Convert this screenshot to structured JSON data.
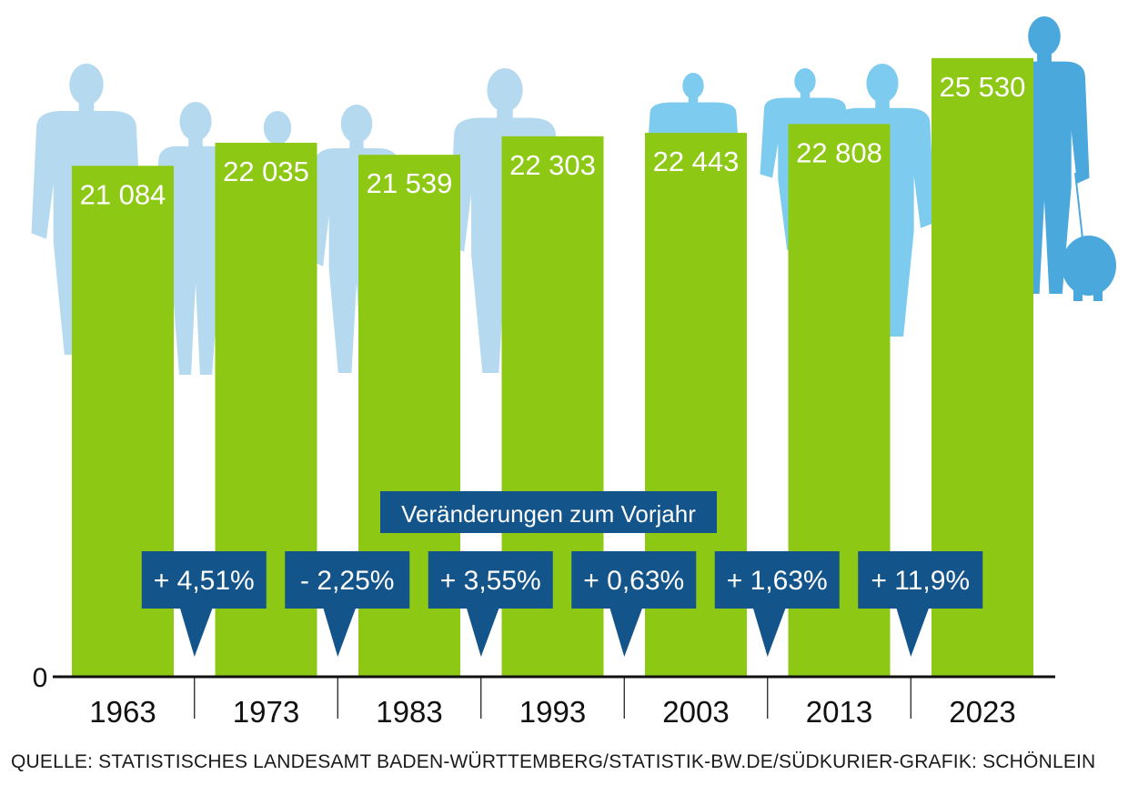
{
  "chart_data": {
    "type": "bar",
    "categories": [
      "1963",
      "1973",
      "1983",
      "1993",
      "2003",
      "2013",
      "2023"
    ],
    "values": [
      21084,
      22035,
      21539,
      22303,
      22443,
      22808,
      25530
    ],
    "value_labels": [
      "21 084",
      "22 035",
      "21 539",
      "22 303",
      "22 443",
      "22 808",
      "25 530"
    ],
    "changes": [
      "+ 4,51%",
      "- 2,25%",
      "+ 3,55%",
      "+ 0,63%",
      "+ 1,63%",
      "+ 11,9%"
    ],
    "changes_title": "Veränderungen zum Vorjahr",
    "y_zero_label": "0",
    "ylim": [
      0,
      26800
    ],
    "grid": false,
    "title": "",
    "xlabel": "",
    "ylabel": ""
  },
  "source": "QUELLE: STATISTISCHES LANDESAMT BADEN-WÜRTTEMBERG/STATISTIK-BW.DE/SÜDKURIER-GRAFIK: SCHÖNLEIN",
  "colors": {
    "bar": "#8dc815",
    "callout": "#13548a",
    "silhouette_light": "#b5daf0",
    "silhouette_mid": "#7ecbf0",
    "silhouette_dark": "#4aa8dc",
    "axis": "#111111"
  },
  "icons": [
    "person-silhouette-icon",
    "dog-silhouette-icon"
  ]
}
